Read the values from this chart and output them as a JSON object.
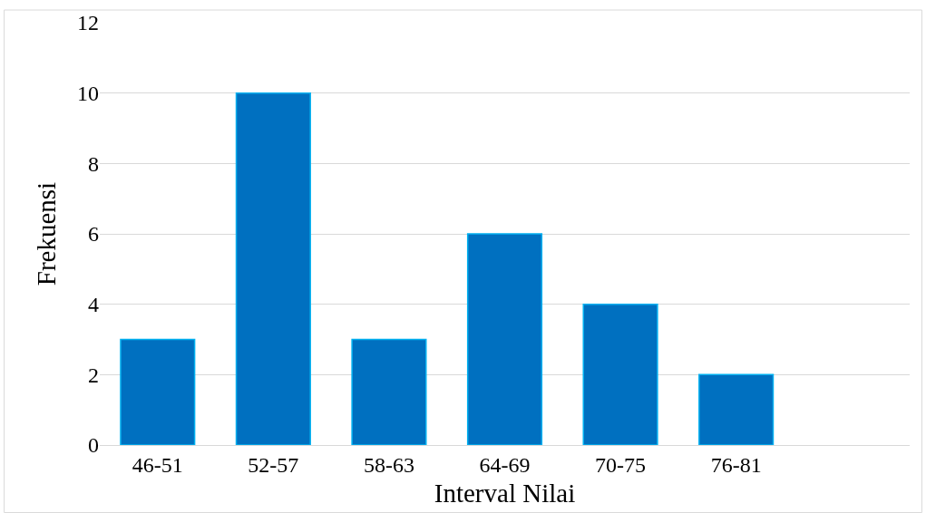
{
  "chart_data": {
    "type": "bar",
    "xlabel": "Interval Nilai",
    "ylabel": "Frekuensi",
    "categories": [
      "46-51",
      "52-57",
      "58-63",
      "64-69",
      "70-75",
      "76-81",
      null
    ],
    "values": [
      3,
      10,
      3,
      6,
      4,
      2,
      null
    ],
    "color": "#0070c0",
    "ylim": [
      0,
      12
    ],
    "yticks": [
      0,
      2,
      4,
      6,
      8,
      10,
      12
    ],
    "grid": "y"
  }
}
